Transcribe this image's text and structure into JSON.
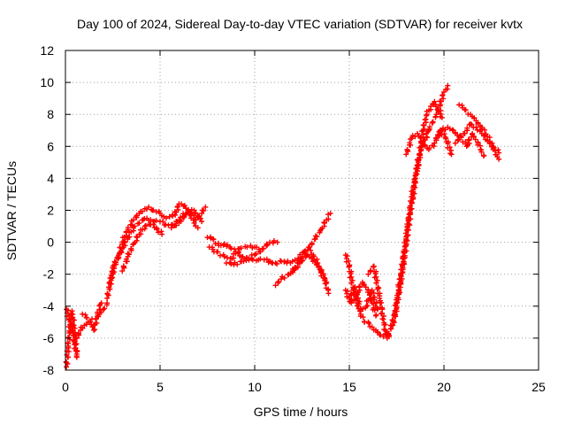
{
  "chart_data": {
    "type": "scatter",
    "title": "Day 100 of 2024, Sidereal Day-to-day VTEC variation (SDTVAR) for receiver kvtx",
    "xlabel": "GPS time / hours",
    "ylabel": "SDTVAR / TECUs",
    "xlim": [
      0,
      25
    ],
    "ylim": [
      -8,
      12
    ],
    "x_ticks": [
      "0",
      "5",
      "10",
      "15",
      "20",
      "25"
    ],
    "y_ticks": [
      "-8",
      "-6",
      "-4",
      "-2",
      "0",
      "2",
      "4",
      "6",
      "8",
      "10",
      "12"
    ],
    "grid": true,
    "legend": "none",
    "marker": "plus",
    "color": "#ff0000",
    "series": [
      {
        "name": "kvtx",
        "segments": [
          {
            "x": [
              0.05,
              0.15,
              0.25,
              0.35,
              0.45,
              0.55,
              0.6
            ],
            "y": [
              -7.8,
              -6.5,
              -5.0,
              -4.3,
              -5.2,
              -6.8,
              -7.2
            ]
          },
          {
            "x": [
              0.05,
              0.2,
              0.35,
              0.5,
              0.6
            ],
            "y": [
              -4.2,
              -4.8,
              -5.5,
              -6.2,
              -7.0
            ]
          },
          {
            "x": [
              0.6,
              0.8,
              1.0,
              1.2,
              1.4,
              1.6,
              1.8,
              2.0,
              2.2
            ],
            "y": [
              -6.0,
              -5.5,
              -5.2,
              -5.0,
              -4.8,
              -4.8,
              -4.5,
              -4.2,
              -3.8
            ]
          },
          {
            "x": [
              0.9,
              1.1,
              1.3,
              1.5,
              1.7,
              1.9
            ],
            "y": [
              -4.5,
              -4.7,
              -5.0,
              -5.5,
              -4.5,
              -3.8
            ]
          },
          {
            "x": [
              2.2,
              2.5,
              2.8,
              3.0,
              3.3,
              3.6,
              3.9,
              4.2,
              4.4,
              4.6,
              4.8,
              5.0,
              5.2,
              5.5,
              5.8,
              6.0,
              6.3,
              6.6,
              6.9,
              7.2,
              7.4
            ],
            "y": [
              -3.5,
              -1.8,
              -0.8,
              0.0,
              0.8,
              1.4,
              1.8,
              2.1,
              2.2,
              2.0,
              1.9,
              1.8,
              1.6,
              1.6,
              1.7,
              2.4,
              2.3,
              1.8,
              1.4,
              1.8,
              2.2
            ]
          },
          {
            "x": [
              2.3,
              2.6,
              3.0,
              3.3,
              3.6,
              3.9,
              4.1,
              4.3,
              4.5,
              4.7,
              5.0,
              5.3,
              5.6,
              5.9,
              6.2,
              6.5,
              6.8,
              7.0
            ],
            "y": [
              -2.8,
              -1.4,
              -0.4,
              0.3,
              0.9,
              1.2,
              1.4,
              1.5,
              1.4,
              1.3,
              1.3,
              1.1,
              1.1,
              1.3,
              1.6,
              2.0,
              1.2,
              0.9
            ]
          },
          {
            "x": [
              3.0,
              3.3,
              3.6,
              3.9,
              4.2,
              4.5,
              4.8,
              5.1
            ],
            "y": [
              -1.8,
              -0.9,
              -0.1,
              0.5,
              1.0,
              1.1,
              0.9,
              0.5
            ]
          },
          {
            "x": [
              5.6,
              6.0,
              6.4,
              6.8,
              7.2
            ],
            "y": [
              0.9,
              1.2,
              1.8,
              2.0,
              1.3
            ]
          },
          {
            "x": [
              7.5,
              7.8,
              8.1,
              8.4,
              8.7,
              9.0,
              9.3,
              9.6,
              9.9,
              10.2,
              10.5,
              10.8,
              11.1,
              11.4,
              11.7,
              12.0,
              12.3,
              12.6,
              12.9,
              13.2,
              13.5,
              13.8,
              14.0
            ],
            "y": [
              0.3,
              0.2,
              -0.2,
              -0.1,
              -0.3,
              -0.6,
              -0.9,
              -1.0,
              -1.1,
              -1.1,
              -1.1,
              -1.2,
              -1.3,
              -1.2,
              -1.3,
              -1.2,
              -1.0,
              -0.6,
              -0.3,
              0.2,
              0.8,
              1.4,
              1.8
            ]
          },
          {
            "x": [
              7.6,
              8.0,
              8.4,
              8.8,
              9.2,
              9.6,
              10.0,
              10.4,
              10.8,
              11.2
            ],
            "y": [
              -0.3,
              -0.6,
              -0.9,
              -1.0,
              -0.4,
              -0.3,
              -0.3,
              -0.4,
              0.0,
              0.0
            ]
          },
          {
            "x": [
              8.5,
              8.9,
              9.3,
              9.7,
              10.0,
              10.3
            ],
            "y": [
              -1.3,
              -1.4,
              -1.2,
              -1.0,
              -0.8,
              -0.6
            ]
          },
          {
            "x": [
              11.1,
              11.4,
              11.8,
              12.2,
              12.5,
              12.8,
              13.1,
              13.4,
              13.7,
              13.9
            ],
            "y": [
              -2.7,
              -2.3,
              -2.0,
              -1.6,
              -1.0,
              -0.5,
              -0.8,
              -1.5,
              -2.4,
              -3.2
            ]
          },
          {
            "x": [
              12.0,
              12.4,
              12.8,
              13.2,
              13.5,
              13.8
            ],
            "y": [
              -1.8,
              -1.2,
              -0.8,
              -1.2,
              -1.8,
              -2.5
            ]
          },
          {
            "x": [
              14.8,
              15.0,
              15.2,
              15.4,
              15.6,
              15.8,
              16.0,
              16.2,
              16.4,
              16.6,
              16.8,
              17.0
            ],
            "y": [
              -0.8,
              -1.5,
              -3.0,
              -3.8,
              -4.5,
              -5.0,
              -5.0,
              -5.3,
              -5.5,
              -5.8,
              -5.9,
              -5.6
            ]
          },
          {
            "x": [
              14.8,
              15.1,
              15.4,
              15.7,
              16.0,
              16.2,
              16.4
            ],
            "y": [
              -3.0,
              -3.8,
              -3.2,
              -2.5,
              -3.0,
              -3.8,
              -4.6
            ]
          },
          {
            "x": [
              15.0,
              15.3,
              15.6,
              15.9,
              16.2,
              16.5
            ],
            "y": [
              -3.5,
              -2.8,
              -4.2,
              -4.0,
              -3.0,
              -4.2
            ]
          },
          {
            "x": [
              16.0,
              16.3,
              16.6,
              16.9,
              17.1
            ],
            "y": [
              -2.0,
              -1.5,
              -3.5,
              -5.5,
              -5.9
            ]
          },
          {
            "x": [
              17.0,
              17.2,
              17.4,
              17.6,
              17.8,
              18.0,
              18.2,
              18.4,
              18.6,
              18.8,
              19.0,
              19.2,
              19.4,
              19.6,
              19.8,
              20.0,
              20.2
            ],
            "y": [
              -6.0,
              -5.4,
              -4.4,
              -3.0,
              -1.5,
              0.2,
              2.0,
              3.5,
              4.8,
              5.8,
              6.4,
              7.0,
              7.5,
              8.0,
              8.6,
              9.4,
              9.8
            ]
          },
          {
            "x": [
              17.3,
              17.5,
              17.7,
              17.9,
              18.1,
              18.3,
              18.5,
              18.7,
              18.9,
              19.1,
              19.3,
              19.5,
              19.7,
              19.9
            ],
            "y": [
              -5.2,
              -4.0,
              -2.5,
              -1.0,
              0.8,
              2.5,
              4.0,
              5.5,
              7.0,
              8.0,
              8.5,
              8.8,
              8.4,
              7.8
            ]
          },
          {
            "x": [
              18.0,
              18.3,
              18.6,
              18.9,
              19.2,
              19.5,
              19.8,
              20.1,
              20.4
            ],
            "y": [
              5.5,
              6.5,
              6.8,
              6.2,
              5.8,
              6.2,
              7.0,
              6.5,
              5.5
            ]
          },
          {
            "x": [
              19.6,
              19.9,
              20.2,
              20.5,
              20.8,
              21.1,
              21.4,
              21.7,
              22.0,
              22.3,
              22.6,
              22.9
            ],
            "y": [
              6.5,
              7.0,
              7.2,
              7.0,
              6.6,
              6.8,
              7.4,
              7.2,
              6.8,
              6.4,
              5.8,
              5.2
            ]
          },
          {
            "x": [
              20.8,
              21.1,
              21.4,
              21.7,
              22.0,
              22.3,
              22.6,
              22.9
            ],
            "y": [
              8.6,
              8.3,
              8.0,
              7.6,
              7.2,
              6.6,
              6.0,
              5.6
            ]
          },
          {
            "x": [
              20.6,
              20.9,
              21.2,
              21.5,
              21.8,
              22.1
            ],
            "y": [
              6.2,
              6.6,
              6.0,
              6.8,
              6.2,
              5.4
            ]
          }
        ]
      }
    ]
  }
}
